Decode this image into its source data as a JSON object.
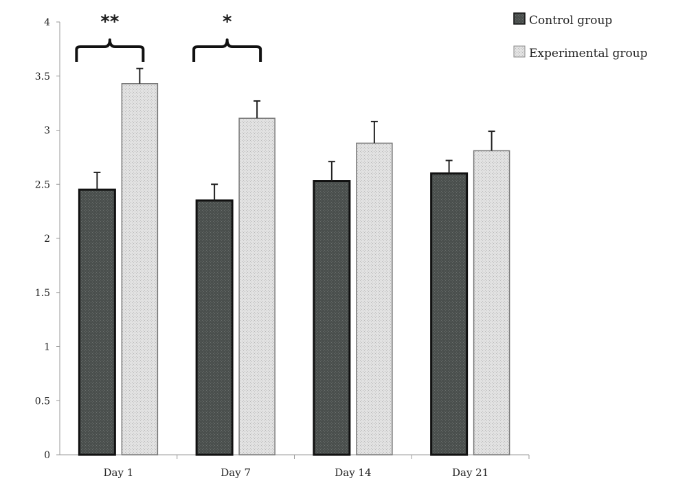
{
  "chart_data": {
    "type": "bar",
    "categories": [
      "Day 1",
      "Day 7",
      "Day 14",
      "Day 21"
    ],
    "series": [
      {
        "name": "Control group",
        "values": [
          2.45,
          2.35,
          2.53,
          2.6
        ],
        "errors": [
          0.16,
          0.15,
          0.18,
          0.12
        ],
        "color": "#4a4f4d"
      },
      {
        "name": "Experimental group",
        "values": [
          3.43,
          3.11,
          2.88,
          2.81
        ],
        "errors": [
          0.14,
          0.16,
          0.2,
          0.18
        ],
        "color": "#dcdcdc"
      }
    ],
    "ylim": [
      0,
      4
    ],
    "yticks": [
      "0",
      "0.5",
      "1",
      "1.5",
      "2",
      "2.5",
      "3",
      "3.5",
      "4"
    ],
    "annotations": [
      {
        "category": "Day 1",
        "text": "**"
      },
      {
        "category": "Day 7",
        "text": "*"
      }
    ],
    "legend_position": "top-right",
    "grid": false
  }
}
